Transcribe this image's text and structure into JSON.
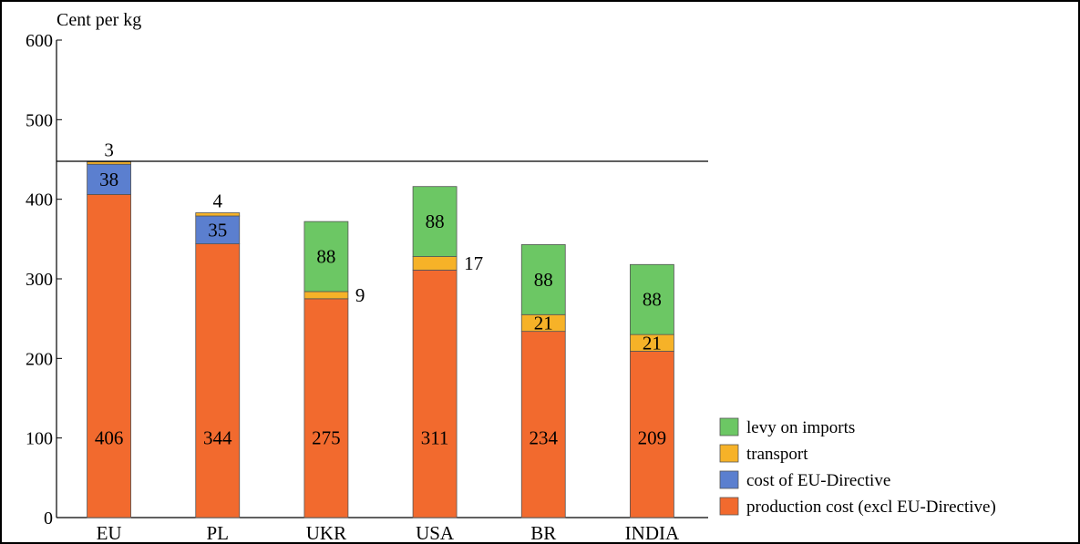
{
  "chart_data": {
    "type": "bar",
    "stacked": true,
    "title": "",
    "xlabel": "",
    "ylabel": "Cent per kg",
    "ylim": [
      0,
      600
    ],
    "yticks": [
      0,
      100,
      200,
      300,
      400,
      500,
      600
    ],
    "grid": false,
    "legend_position": "bottom-right",
    "reference_line": 450,
    "categories": [
      "EU",
      "PL",
      "UKR",
      "USA",
      "BR",
      "INDIA"
    ],
    "series": [
      {
        "name": "production cost (excl EU-Directive)",
        "color": "#f26a2e",
        "values": [
          406,
          344,
          275,
          311,
          234,
          209
        ]
      },
      {
        "name": "cost of EU-Directive",
        "color": "#5b7fcf",
        "values": [
          38,
          35,
          0,
          0,
          0,
          0
        ]
      },
      {
        "name": "transport",
        "color": "#f6b228",
        "values": [
          3,
          4,
          9,
          17,
          21,
          21
        ]
      },
      {
        "name": "levy on imports",
        "color": "#6cc764",
        "values": [
          0,
          0,
          88,
          88,
          88,
          88
        ]
      }
    ]
  }
}
